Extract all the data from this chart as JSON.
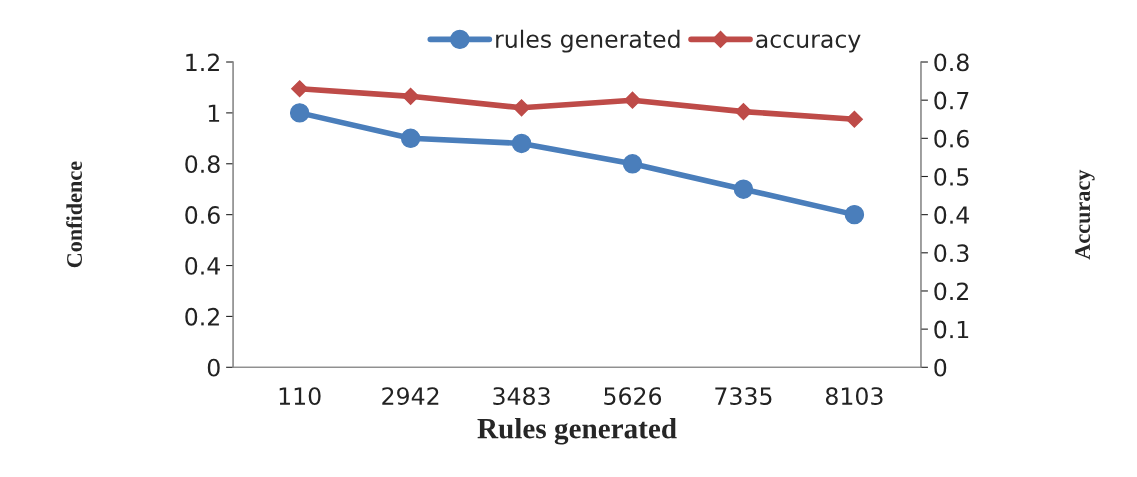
{
  "chart_data": {
    "type": "line",
    "xlabel": "Rules generated",
    "ylabel": "Confidence",
    "y2label": "Accuracy",
    "categories": [
      "110",
      "2942",
      "3483",
      "5626",
      "7335",
      "8103"
    ],
    "series": [
      {
        "name": "rules generated",
        "color": "#4a7ebb",
        "values": [
          1.0,
          0.9,
          0.88,
          0.8,
          0.7,
          0.6
        ],
        "marker": "circle"
      },
      {
        "name": "accuracy",
        "color": "#be4b48",
        "values": [
          0.73,
          0.71,
          0.68,
          0.7,
          0.67,
          0.65
        ],
        "axis": "y2",
        "marker": "diamond"
      }
    ],
    "ylim": [
      0,
      1.2
    ],
    "yticks": [
      0,
      0.2,
      0.4,
      0.6,
      0.8,
      1,
      1.2
    ],
    "y2lim": [
      0,
      0.8
    ],
    "y2ticks": [
      0,
      0.1,
      0.2,
      0.3,
      0.4,
      0.5,
      0.6,
      0.7,
      0.8
    ],
    "legend": "top",
    "grid": false,
    "line_style": "solid"
  }
}
